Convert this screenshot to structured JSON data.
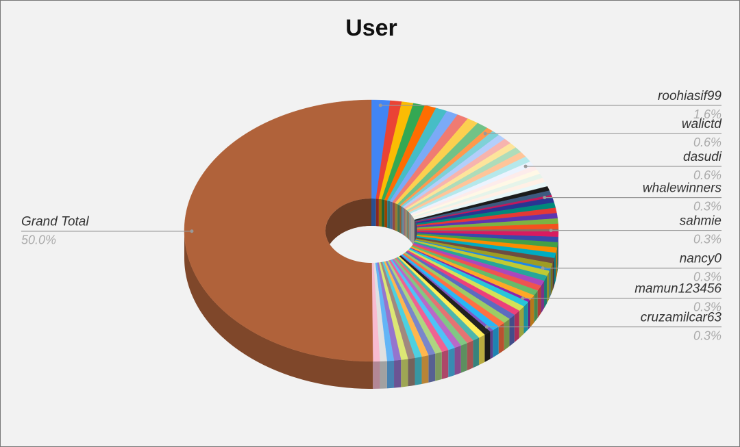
{
  "chart_data": {
    "type": "donut3d",
    "title": "User",
    "categories": [
      "roohiasif99",
      null,
      null,
      null,
      null,
      null,
      null,
      null,
      null,
      null,
      "walictd",
      null,
      null,
      null,
      null,
      null,
      null,
      null,
      "dasudi",
      null,
      null,
      null,
      null,
      null,
      null,
      null,
      "whalewinners",
      null,
      null,
      null,
      null,
      null,
      null,
      "sahmie",
      null,
      null,
      null,
      null,
      null,
      null,
      null,
      "nancy0",
      null,
      null,
      null,
      null,
      null,
      null,
      "mamun123456",
      null,
      null,
      null,
      null,
      null,
      null,
      null,
      "cruzamilcar63",
      null,
      null,
      null,
      null,
      null,
      null,
      null,
      null,
      null,
      null,
      null,
      null,
      null,
      null,
      null,
      null,
      null,
      null,
      "Grand Total"
    ],
    "values": [
      1.6,
      1,
      1,
      1,
      1,
      1,
      1,
      1,
      1,
      1,
      0.6,
      0.7,
      0.7,
      0.7,
      0.7,
      0.7,
      0.7,
      0.7,
      0.6,
      0.55,
      0.55,
      0.55,
      0.55,
      0.55,
      0.55,
      0.55,
      0.3,
      0.65,
      0.65,
      0.65,
      0.65,
      0.65,
      0.65,
      0.3,
      0.65,
      0.65,
      0.65,
      0.65,
      0.65,
      0.65,
      0.65,
      0.3,
      0.65,
      0.65,
      0.65,
      0.65,
      0.65,
      0.65,
      0.3,
      0.65,
      0.65,
      0.65,
      0.65,
      0.65,
      0.65,
      0.65,
      0.3,
      0.6,
      0.6,
      0.6,
      0.6,
      0.6,
      0.6,
      0.6,
      0.6,
      0.6,
      0.6,
      0.6,
      0.6,
      0.6,
      0.6,
      0.6,
      0.6,
      0.6,
      0.6,
      50.0
    ],
    "value_labels": [
      "1.6%",
      null,
      null,
      null,
      null,
      null,
      null,
      null,
      null,
      null,
      "0.6%",
      null,
      null,
      null,
      null,
      null,
      null,
      null,
      "0.6%",
      null,
      null,
      null,
      null,
      null,
      null,
      null,
      "0.3%",
      null,
      null,
      null,
      null,
      null,
      null,
      "0.3%",
      null,
      null,
      null,
      null,
      null,
      null,
      null,
      "0.3%",
      null,
      null,
      null,
      null,
      null,
      null,
      "0.3%",
      null,
      null,
      null,
      null,
      null,
      null,
      null,
      "0.3%",
      null,
      null,
      null,
      null,
      null,
      null,
      null,
      null,
      null,
      null,
      null,
      null,
      null,
      null,
      null,
      null,
      null,
      null,
      "50.0%"
    ],
    "colors": [
      "#4285f4",
      "#ea4335",
      "#fbbc04",
      "#34a853",
      "#ff6d01",
      "#46bdc6",
      "#7baaf7",
      "#f07b72",
      "#fcd04f",
      "#71c287",
      "#ff994d",
      "#7ed1d7",
      "#b3cefb",
      "#f7b4ae",
      "#fde49b",
      "#aedcba",
      "#ffc599",
      "#b5e8eb",
      "#ecf3fe",
      "#fdeceb",
      "#fff8e6",
      "#e6f4ea",
      "#fff0e6",
      "#e8f7f8",
      "#1b1b1b",
      "#3d5a80",
      "#c2185b",
      "#283593",
      "#00897b",
      "#e53935",
      "#5e35b1",
      "#7cb342",
      "#f4511e",
      "#8d6e63",
      "#d81b60",
      "#3949ab",
      "#43a047",
      "#fb8c00",
      "#00acc1",
      "#6d4c41",
      "#9e9d24",
      "#1e88e5",
      "#c0ca33",
      "#26a69a",
      "#ab47bc",
      "#ef5350",
      "#66bb6a",
      "#ffa726",
      "#8e24aa",
      "#26c6da",
      "#d4e157",
      "#ec407a",
      "#5c6bc0",
      "#9ccc65",
      "#ff7043",
      "#29b6f6",
      "#7e57c2",
      "#212121",
      "#ffee58",
      "#4db6ac",
      "#e57373",
      "#81c784",
      "#ba68c8",
      "#4fc3f7",
      "#f06292",
      "#aed581",
      "#7986cb",
      "#ffb74d",
      "#4dd0e1",
      "#a1887f",
      "#dce775",
      "#9575cd",
      "#64b5f6",
      "#e0e0e0",
      "#f8bbd0",
      "#b0623a"
    ]
  }
}
